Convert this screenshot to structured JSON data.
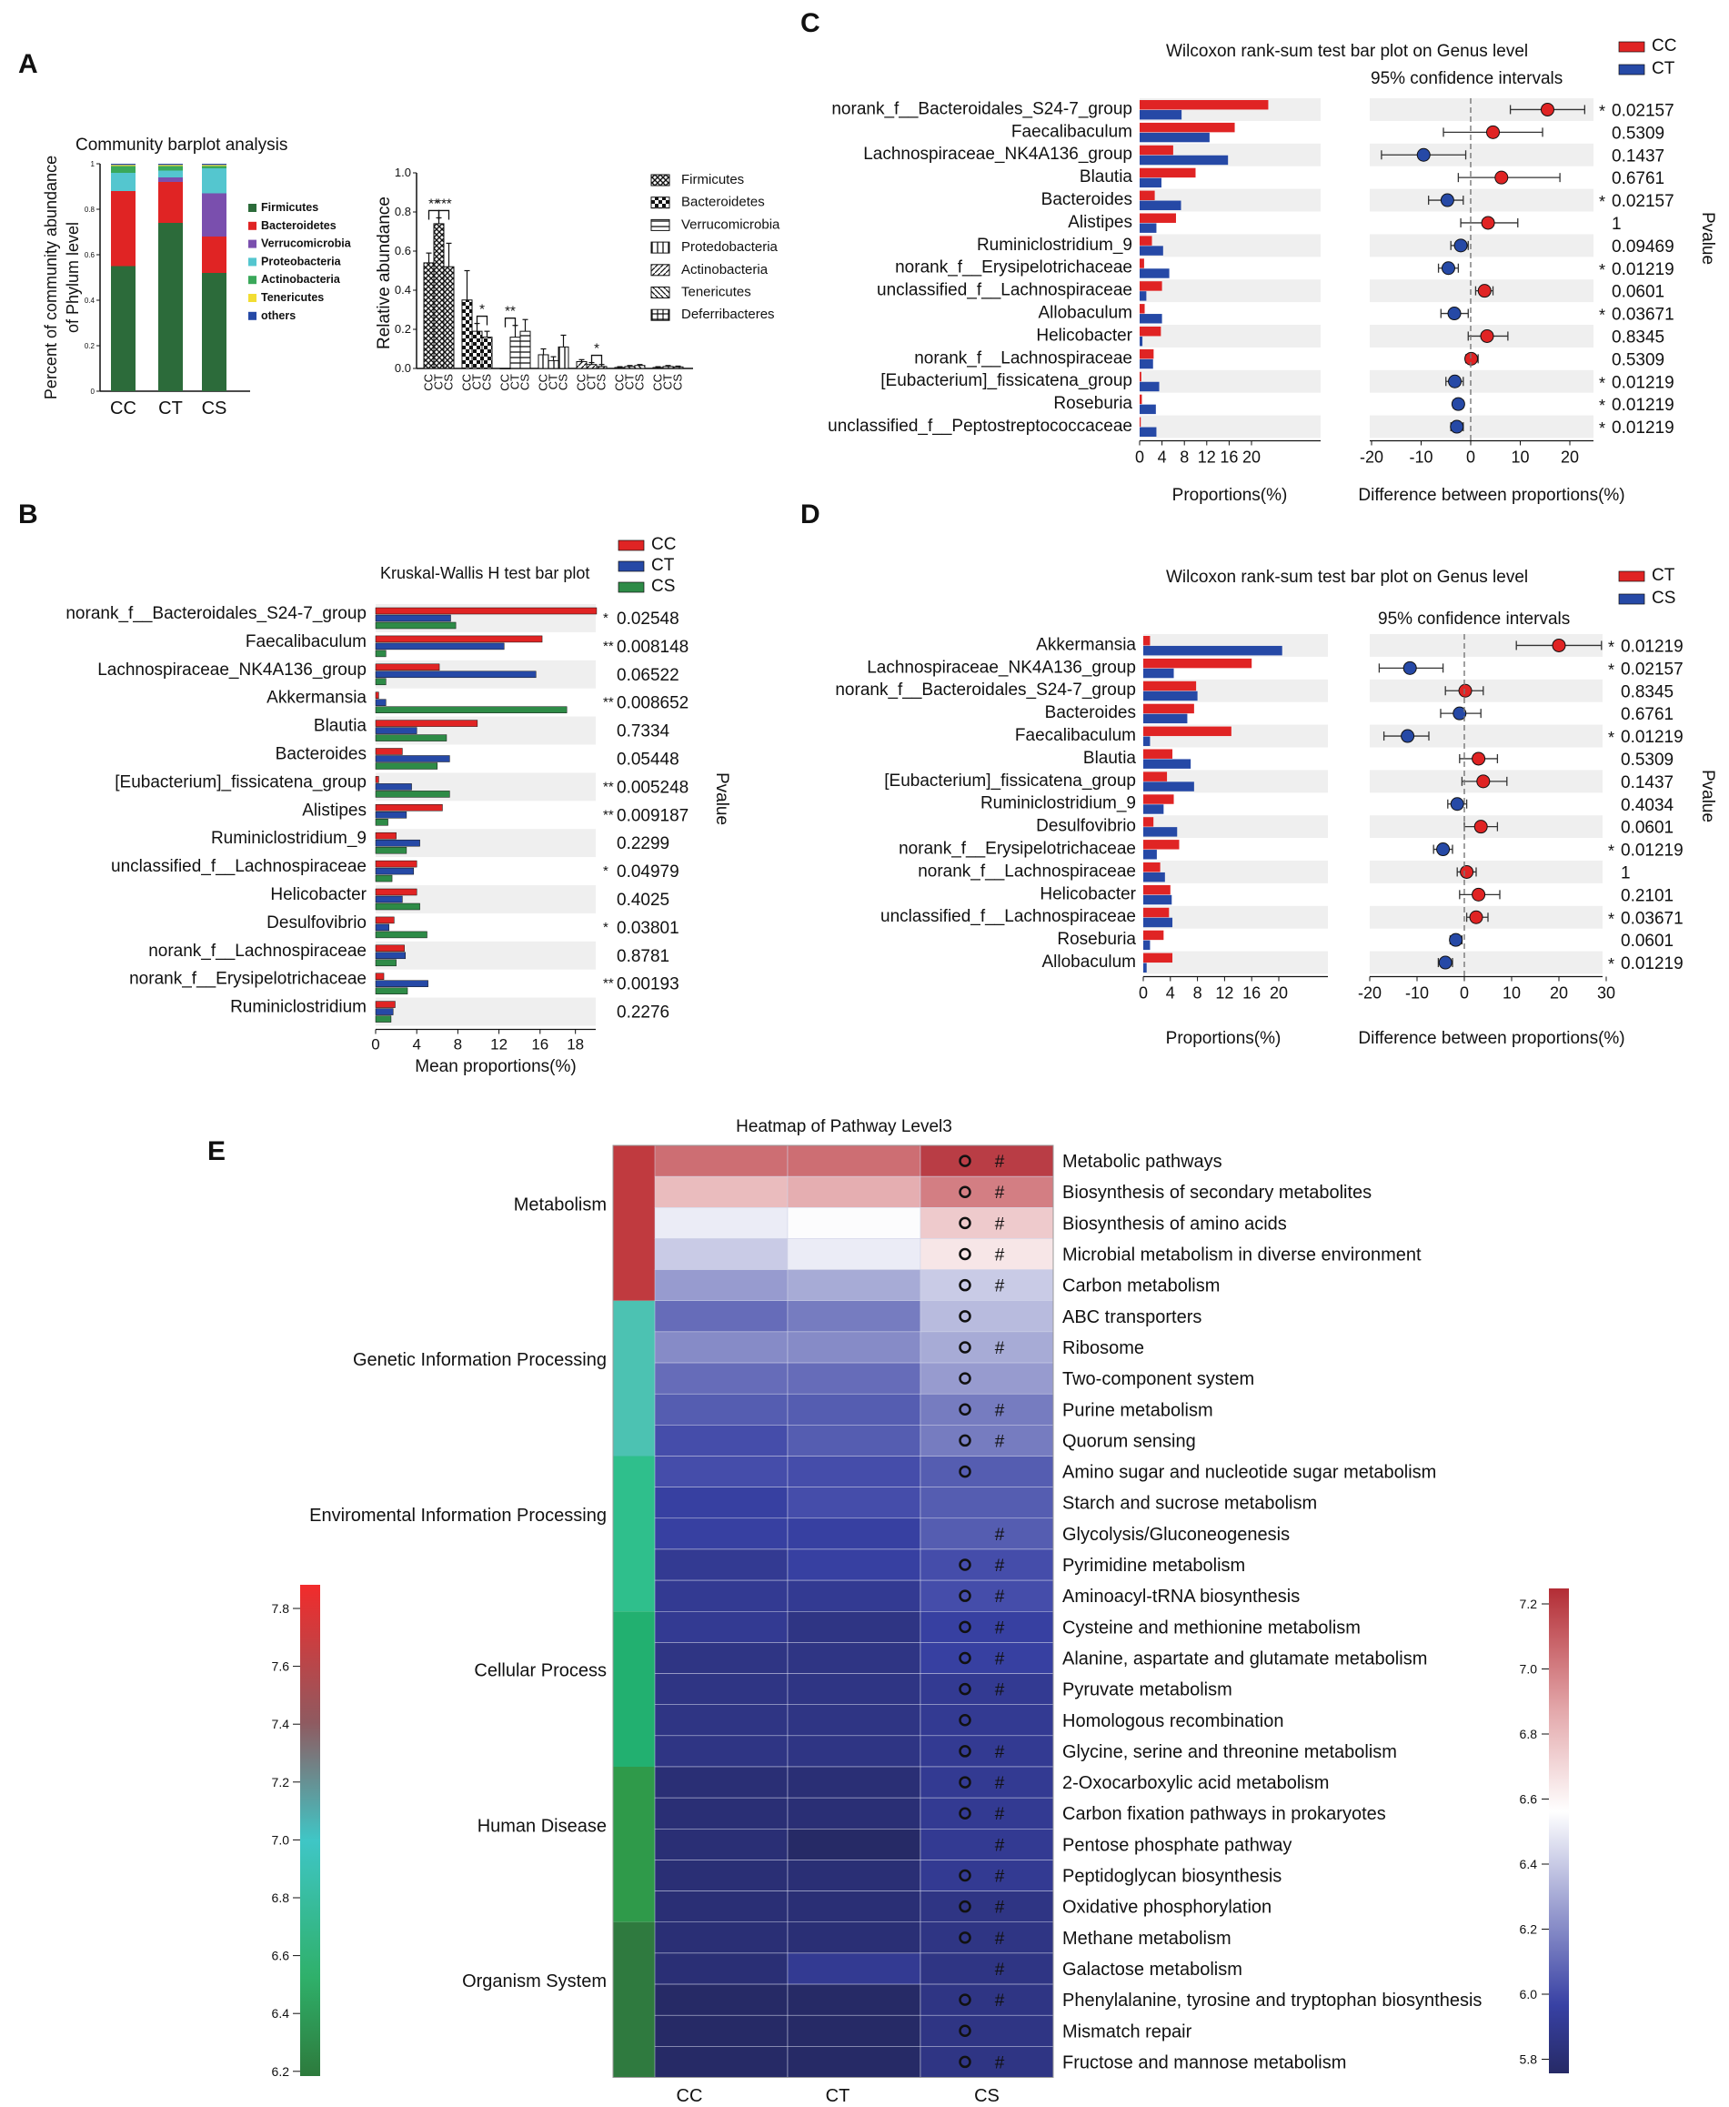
{
  "panels": {
    "A": "A",
    "B": "B",
    "C": "C",
    "D": "D",
    "E": "E"
  },
  "colors": {
    "cc": "#e02424",
    "ct": "#2649a6",
    "cs": "#2e8b47",
    "bar_bg": "#efefef",
    "phylum": [
      "#2c6b3a",
      "#e02424",
      "#7a4fae",
      "#54c6cf",
      "#3aa85a",
      "#f2dd33",
      "#2649a6"
    ]
  },
  "panelA": {
    "stack": {
      "title": "Community barplot analysis",
      "ylabel1": "Percent of community abundance",
      "ylabel2": "of Phylum level",
      "yticks": [
        "0",
        "0.2",
        "0.4",
        "0.6",
        "0.8",
        "1"
      ],
      "groups": [
        "CC",
        "CT",
        "CS"
      ],
      "legend": [
        "Firmicutes",
        "Bacteroidetes",
        "Verrucomicrobia",
        "Proteobacteria",
        "Actinobacteria",
        "Tenericutes",
        "others"
      ],
      "values": [
        [
          0.55,
          0.33,
          0.0,
          0.08,
          0.03,
          0.005,
          0.005
        ],
        [
          0.74,
          0.18,
          0.02,
          0.03,
          0.02,
          0.005,
          0.005
        ],
        [
          0.52,
          0.16,
          0.19,
          0.11,
          0.01,
          0.005,
          0.005
        ]
      ]
    },
    "rel": {
      "ylabel": "Relative abundance",
      "yticks": [
        "0.0",
        "0.2",
        "0.4",
        "0.6",
        "0.8",
        "1.0"
      ],
      "legend": [
        "Firmicutes",
        "Bacteroidetes",
        "Verrucomicrobia",
        "Protedobacteria",
        "Actinobacteria",
        "Tenericutes",
        "Deferribacteres"
      ],
      "groups": [
        "CC",
        "CT",
        "CS"
      ],
      "values": [
        [
          0.54,
          0.74,
          0.52
        ],
        [
          0.35,
          0.19,
          0.16
        ],
        [
          0.0,
          0.16,
          0.19
        ],
        [
          0.07,
          0.04,
          0.11
        ],
        [
          0.035,
          0.02,
          0.01
        ],
        [
          0.005,
          0.01,
          0.015
        ],
        [
          0.005,
          0.01,
          0.008
        ]
      ],
      "errors": [
        [
          0.05,
          0.03,
          0.12
        ],
        [
          0.15,
          0.04,
          0.03
        ],
        [
          0.0,
          0.06,
          0.06
        ],
        [
          0.03,
          0.02,
          0.06
        ],
        [
          0.01,
          0.01,
          0.01
        ],
        [
          0.004,
          0.005,
          0.005
        ],
        [
          0.004,
          0.005,
          0.004
        ]
      ],
      "sig": [
        {
          "series": 0,
          "from": 0,
          "to": 1,
          "label": "**"
        },
        {
          "series": 0,
          "from": 1,
          "to": 2,
          "label": "***"
        },
        {
          "series": 1,
          "from": 1,
          "to": 2,
          "label": "*"
        },
        {
          "series": 2,
          "from": 0,
          "to": 1,
          "label": "**"
        },
        {
          "series": 4,
          "from": 1,
          "to": 2,
          "label": "*"
        }
      ]
    }
  },
  "panelB": {
    "title": "Kruskal-Wallis H test bar plot",
    "legend": [
      "CC",
      "CT",
      "CS"
    ],
    "xlabel": "Mean proportions(%)",
    "pvalue_label": "Pvalue",
    "xticks": [
      "0",
      "4",
      "8",
      "12",
      "16",
      "18"
    ],
    "genera": [
      "norank_f__Bacteroidales_S24-7_group",
      "Faecalibaculum",
      "Lachnospiraceae_NK4A136_group",
      "Akkermansia",
      "Blautia",
      "Bacteroides",
      "[Eubacterium]_fissicatena_group",
      "Alistipes",
      "Ruminiclostridium_9",
      "unclassified_f__Lachnospiraceae",
      "Helicobacter",
      "Desulfovibrio",
      "norank_f__Lachnospiraceae",
      "norank_f__Erysipelotrichaceae",
      "Ruminiclostridium"
    ],
    "values": [
      [
        21.5,
        7.3,
        7.8
      ],
      [
        16.2,
        12.5,
        1.0
      ],
      [
        6.2,
        15.6,
        1.0
      ],
      [
        0.3,
        1.0,
        18.6
      ],
      [
        9.9,
        4.0,
        6.9
      ],
      [
        2.6,
        7.2,
        6.0
      ],
      [
        0.3,
        3.5,
        7.2
      ],
      [
        6.5,
        3.0,
        1.2
      ],
      [
        2.0,
        4.3,
        3.0
      ],
      [
        4.0,
        3.7,
        1.6
      ],
      [
        4.0,
        2.6,
        4.3
      ],
      [
        1.8,
        1.3,
        5.0
      ],
      [
        2.8,
        2.9,
        2.0
      ],
      [
        0.8,
        5.1,
        3.1
      ],
      [
        1.9,
        1.7,
        1.5
      ]
    ],
    "pvalues": [
      "0.02548",
      "0.008148",
      "0.06522",
      "0.008652",
      "0.7334",
      "0.05448",
      "0.005248",
      "0.009187",
      "0.2299",
      "0.04979",
      "0.4025",
      "0.03801",
      "0.8781",
      "0.00193",
      "0.2276"
    ],
    "stars": [
      "*",
      "**",
      "",
      "**",
      "",
      "",
      "**",
      "**",
      "",
      "*",
      "",
      "*",
      "",
      "**",
      ""
    ]
  },
  "panelC": {
    "title": "Wilcoxon rank-sum test bar plot on Genus level",
    "ci_title": "95% confidence intervals",
    "legend": [
      "CC",
      "CT"
    ],
    "xlabel_left": "Proportions(%)",
    "xlabel_right": "Difference between proportions(%)",
    "pvalue_label": "Pvalue",
    "xticks_left": [
      "0",
      "4",
      "8",
      "12",
      "16",
      "20"
    ],
    "xticks_right": [
      "-20",
      "-10",
      "0",
      "10",
      "20"
    ],
    "genera": [
      "norank_f__Bacteroidales_S24-7_group",
      "Faecalibaculum",
      "Lachnospiraceae_NK4A136_group",
      "Blautia",
      "Bacteroides",
      "Alistipes",
      "Ruminiclostridium_9",
      "norank_f__Erysipelotrichaceae",
      "unclassified_f__Lachnospiraceae",
      "Allobaculum",
      "Helicobacter",
      "norank_f__Lachnospiraceae",
      "[Eubacterium]_fissicatena_group",
      "Roseburia",
      "unclassified_f__Peptostreptococcaceae"
    ],
    "values": [
      [
        23.0,
        7.5
      ],
      [
        17.0,
        12.5
      ],
      [
        6.0,
        15.8
      ],
      [
        10.0,
        3.9
      ],
      [
        2.7,
        7.4
      ],
      [
        6.5,
        3.0
      ],
      [
        2.2,
        4.2
      ],
      [
        0.8,
        5.3
      ],
      [
        4.0,
        1.2
      ],
      [
        0.9,
        4.0
      ],
      [
        3.8,
        0.5
      ],
      [
        2.5,
        2.4
      ],
      [
        0.3,
        3.5
      ],
      [
        0.4,
        2.9
      ],
      [
        0.2,
        3.0
      ]
    ],
    "diff": [
      15.5,
      4.5,
      -9.5,
      6.2,
      -4.7,
      3.5,
      -2.0,
      -4.5,
      2.8,
      -3.3,
      3.3,
      0.1,
      -3.2,
      -2.5,
      -2.8
    ],
    "ci": [
      [
        8.0,
        23.0
      ],
      [
        -5.5,
        14.5
      ],
      [
        -18.0,
        -1.0
      ],
      [
        -2.5,
        18.0
      ],
      [
        -8.5,
        -1.5
      ],
      [
        -2.0,
        9.5
      ],
      [
        -4.0,
        -0.5
      ],
      [
        -6.5,
        -2.5
      ],
      [
        1.0,
        4.5
      ],
      [
        -6.0,
        -0.5
      ],
      [
        -0.5,
        7.5
      ],
      [
        -1.0,
        1.5
      ],
      [
        -5.0,
        -1.5
      ],
      [
        -3.5,
        -1.5
      ],
      [
        -4.0,
        -1.5
      ]
    ],
    "pvalues": [
      "0.02157",
      "0.5309",
      "0.1437",
      "0.6761",
      "0.02157",
      "1",
      "0.09469",
      "0.01219",
      "0.0601",
      "0.03671",
      "0.8345",
      "0.5309",
      "0.01219",
      "0.01219",
      "0.01219"
    ],
    "stars": [
      "*",
      "",
      "",
      "",
      "*",
      "",
      "",
      "*",
      "",
      "*",
      "",
      "",
      "*",
      "*",
      "*"
    ]
  },
  "panelD": {
    "title": "Wilcoxon rank-sum test bar plot on Genus level",
    "ci_title": "95% confidence intervals",
    "legend": [
      "CT",
      "CS"
    ],
    "xlabel_left": "Proportions(%)",
    "xlabel_right": "Difference between proportions(%)",
    "pvalue_label": "Pvalue",
    "xticks_left": [
      "0",
      "4",
      "8",
      "12",
      "16",
      "20"
    ],
    "xticks_right": [
      "-20",
      "-10",
      "0",
      "10",
      "20",
      "30"
    ],
    "genera": [
      "Akkermansia",
      "Lachnospiraceae_NK4A136_group",
      "norank_f__Bacteroidales_S24-7_group",
      "Bacteroides",
      "Faecalibaculum",
      "Blautia",
      "[Eubacterium]_fissicatena_group",
      "Ruminiclostridium_9",
      "Desulfovibrio",
      "norank_f__Erysipelotrichaceae",
      "norank_f__Lachnospiraceae",
      "Helicobacter",
      "unclassified_f__Lachnospiraceae",
      "Roseburia",
      "Allobaculum"
    ],
    "values": [
      [
        1.0,
        20.5
      ],
      [
        16.0,
        4.5
      ],
      [
        7.8,
        8.0
      ],
      [
        7.5,
        6.5
      ],
      [
        13.0,
        1.0
      ],
      [
        4.3,
        7.0
      ],
      [
        3.5,
        7.5
      ],
      [
        4.5,
        3.0
      ],
      [
        1.5,
        5.0
      ],
      [
        5.3,
        2.0
      ],
      [
        2.5,
        3.2
      ],
      [
        4.0,
        4.2
      ],
      [
        3.8,
        4.3
      ],
      [
        3.0,
        1.0
      ],
      [
        4.3,
        0.5
      ]
    ],
    "diff": [
      20.0,
      -11.5,
      0.2,
      -1.0,
      -12.0,
      3.0,
      4.0,
      -1.5,
      3.5,
      -4.5,
      0.5,
      3.0,
      2.5,
      -1.8,
      -4.0
    ],
    "ci": [
      [
        11.0,
        29.0
      ],
      [
        -18.0,
        -4.5
      ],
      [
        -4.0,
        4.0
      ],
      [
        -5.0,
        3.5
      ],
      [
        -17.0,
        -7.5
      ],
      [
        -1.0,
        7.0
      ],
      [
        -0.5,
        9.0
      ],
      [
        -3.5,
        0.5
      ],
      [
        0.0,
        7.0
      ],
      [
        -6.5,
        -2.5
      ],
      [
        -1.5,
        2.5
      ],
      [
        -1.0,
        7.5
      ],
      [
        0.5,
        5.0
      ],
      [
        -3.0,
        -0.5
      ],
      [
        -5.5,
        -2.5
      ]
    ],
    "pvalues": [
      "0.01219",
      "0.02157",
      "0.8345",
      "0.6761",
      "0.01219",
      "0.5309",
      "0.1437",
      "0.4034",
      "0.0601",
      "0.01219",
      "1",
      "0.2101",
      "0.03671",
      "0.0601",
      "0.01219"
    ],
    "stars": [
      "*",
      "*",
      "",
      "",
      "*",
      "",
      "",
      "",
      "",
      "*",
      "",
      "",
      "*",
      "",
      "*"
    ]
  },
  "panelE": {
    "title": "Heatmap of Pathway Level3",
    "columns": [
      "CC",
      "CT",
      "CS"
    ],
    "categories": [
      {
        "name": "Metabolism",
        "rows": 5,
        "color": "#c03a3f"
      },
      {
        "name": "Genetic Information Processing",
        "rows": 5,
        "color": "#4cc2b2"
      },
      {
        "name": "Enviromental Information Processing",
        "rows": 5,
        "color": "#2fbf8c"
      },
      {
        "name": "Cellular Process",
        "rows": 5,
        "color": "#22b070"
      },
      {
        "name": "Human Disease",
        "rows": 5,
        "color": "#2f9a4a"
      },
      {
        "name": "Organism System",
        "rows": 5,
        "color": "#2f7a3f"
      }
    ],
    "pathways": [
      "Metabolic pathways",
      "Biosynthesis of secondary metabolites",
      "Biosynthesis of amino acids",
      "Microbial metabolism in diverse environment",
      "Carbon metabolism",
      "ABC transporters",
      "Ribosome",
      "Two-component system",
      "Purine metabolism",
      "Quorum sensing",
      "Amino sugar and nucleotide sugar metabolism",
      "Starch and sucrose metabolism",
      "Glycolysis/Gluconeogenesis",
      "Pyrimidine metabolism",
      "Aminoacyl-tRNA biosynthesis",
      "Cysteine and methionine metabolism",
      "Alanine, aspartate and glutamate metabolism",
      "Pyruvate metabolism",
      "Homologous recombination",
      "Glycine, serine and threonine metabolism",
      "2-Oxocarboxylic acid metabolism",
      "Carbon fixation pathways in prokaryotes",
      "Pentose phosphate pathway",
      "Peptidoglycan biosynthesis",
      "Oxidative phosphorylation",
      "Methane metabolism",
      "Galactose metabolism",
      "Phenylalanine, tyrosine and tryptophan biosynthesis",
      "Mismatch repair",
      "Fructose and mannose metabolism"
    ],
    "values": [
      [
        7.0,
        7.0,
        7.15
      ],
      [
        6.75,
        6.8,
        6.95
      ],
      [
        6.45,
        6.5,
        6.7
      ],
      [
        6.35,
        6.45,
        6.6
      ],
      [
        6.2,
        6.25,
        6.35
      ],
      [
        6.05,
        6.1,
        6.3
      ],
      [
        6.15,
        6.15,
        6.25
      ],
      [
        6.05,
        6.05,
        6.2
      ],
      [
        6.0,
        6.0,
        6.1
      ],
      [
        5.95,
        6.0,
        6.1
      ],
      [
        5.95,
        5.95,
        6.0
      ],
      [
        5.9,
        5.95,
        6.0
      ],
      [
        5.9,
        5.9,
        6.0
      ],
      [
        5.85,
        5.9,
        5.95
      ],
      [
        5.85,
        5.85,
        5.95
      ],
      [
        5.85,
        5.8,
        5.9
      ],
      [
        5.8,
        5.8,
        5.9
      ],
      [
        5.8,
        5.8,
        5.85
      ],
      [
        5.8,
        5.8,
        5.85
      ],
      [
        5.8,
        5.8,
        5.85
      ],
      [
        5.75,
        5.75,
        5.85
      ],
      [
        5.75,
        5.75,
        5.85
      ],
      [
        5.75,
        5.7,
        5.85
      ],
      [
        5.75,
        5.75,
        5.85
      ],
      [
        5.75,
        5.75,
        5.8
      ],
      [
        5.75,
        5.75,
        5.8
      ],
      [
        5.75,
        5.85,
        5.8
      ],
      [
        5.7,
        5.7,
        5.8
      ],
      [
        5.7,
        5.7,
        5.8
      ],
      [
        5.7,
        5.7,
        5.8
      ]
    ],
    "marks": [
      [
        "o",
        "#"
      ],
      [
        "o",
        "#"
      ],
      [
        "o",
        "#"
      ],
      [
        "o",
        "#"
      ],
      [
        "o",
        "#"
      ],
      [
        "o",
        ""
      ],
      [
        "o",
        "#"
      ],
      [
        "o",
        ""
      ],
      [
        "o",
        "#"
      ],
      [
        "o",
        "#"
      ],
      [
        "o",
        ""
      ],
      [
        "",
        ""
      ],
      [
        "",
        "#"
      ],
      [
        "o",
        "#"
      ],
      [
        "o",
        "#"
      ],
      [
        "o",
        "#"
      ],
      [
        "o",
        "#"
      ],
      [
        "o",
        "#"
      ],
      [
        "o",
        ""
      ],
      [
        "o",
        "#"
      ],
      [
        "o",
        "#"
      ],
      [
        "o",
        "#"
      ],
      [
        "",
        "#"
      ],
      [
        "o",
        "#"
      ],
      [
        "o",
        "#"
      ],
      [
        "o",
        "#"
      ],
      [
        "",
        "#"
      ],
      [
        "o",
        "#"
      ],
      [
        "o",
        ""
      ],
      [
        "o",
        "#"
      ]
    ],
    "left_scale": {
      "ticks": [
        "7.8",
        "7.6",
        "7.4",
        "7.2",
        "7.0",
        "6.8",
        "6.6",
        "6.4",
        "6.2"
      ]
    },
    "right_scale": {
      "ticks": [
        "7.2",
        "7.0",
        "6.8",
        "6.6",
        "6.4",
        "6.2",
        "6.0",
        "5.8"
      ]
    }
  }
}
